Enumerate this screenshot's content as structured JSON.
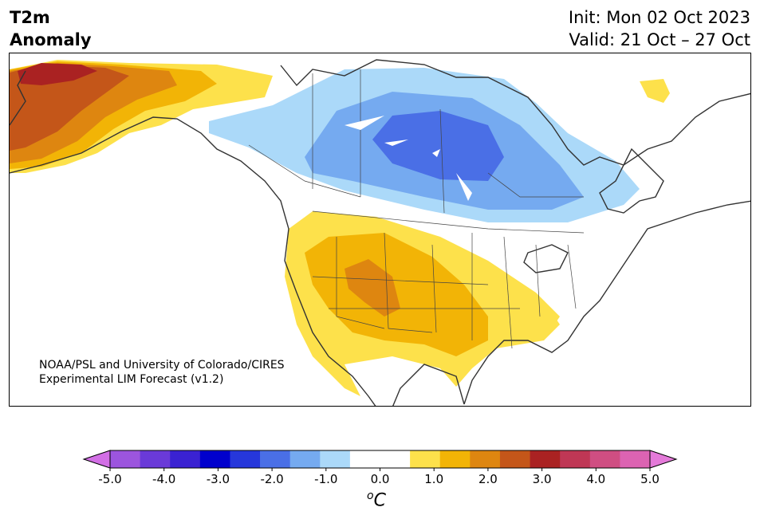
{
  "title": {
    "line1": "T2m",
    "line2": "Anomaly"
  },
  "dates": {
    "init": "Init: Mon 02 Oct 2023",
    "valid": "Valid: 21 Oct – 27 Oct"
  },
  "credit": {
    "line1": "NOAA/PSL and University of Colorado/CIRES",
    "line2": "Experimental LIM Forecast (v1.2)"
  },
  "colorbar": {
    "unit_prefix": "o",
    "unit": "C",
    "ticks": [
      "-5.0",
      "-4.0",
      "-3.0",
      "-2.0",
      "-1.0",
      "0.0",
      "1.0",
      "2.0",
      "3.0",
      "4.0",
      "5.0"
    ],
    "colors": [
      "#9c55de",
      "#6a3ad8",
      "#3a22d2",
      "#0000cd",
      "#2637db",
      "#4a6fe6",
      "#75aaf0",
      "#abd9f9",
      "#ffffff",
      "#ffffff",
      "#fde14b",
      "#f2b406",
      "#de8610",
      "#c45619",
      "#aa2222",
      "#bf3755",
      "#cf4e82",
      "#dc63b2"
    ],
    "under_color": "#d26fe5",
    "over_color": "#e47ad9"
  },
  "regions": {
    "alaska_warm": "#c45619",
    "greatlakes_cold": "#4a6fe6",
    "southwest_warm": "#f2b406"
  }
}
